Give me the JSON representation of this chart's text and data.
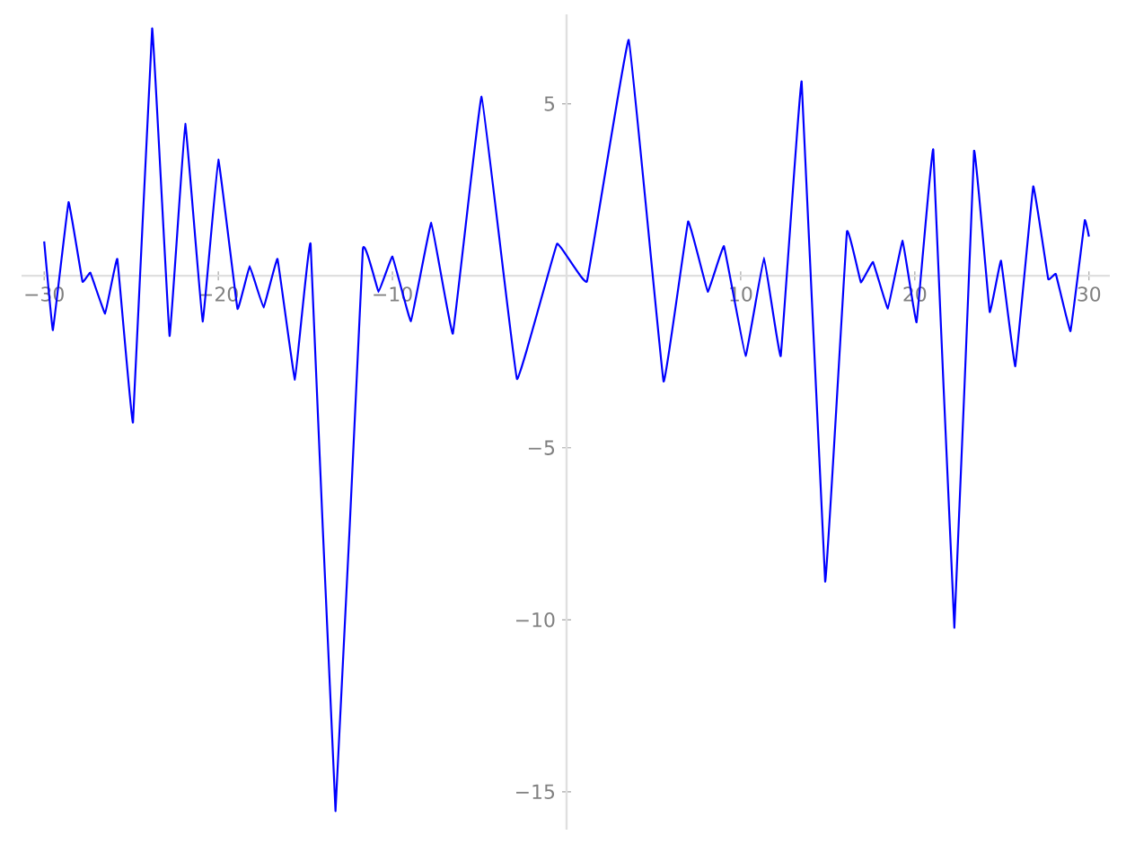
{
  "chart_data": {
    "type": "line",
    "xlim": [
      -31.3,
      31.2
    ],
    "ylim": [
      -16.1,
      7.6
    ],
    "xticks": [
      {
        "value": -30,
        "label": "−30"
      },
      {
        "value": -20,
        "label": "−20"
      },
      {
        "value": -10,
        "label": "−10"
      },
      10,
      20,
      30
    ],
    "yticks": [
      {
        "value": -15,
        "label": "−15"
      },
      {
        "value": -10,
        "label": "−10"
      },
      {
        "value": -5,
        "label": "−5"
      },
      5
    ],
    "series": [
      {
        "color": "#0000ff",
        "x": [
          -30,
          -29.5,
          -28.6,
          -27.8,
          -27.35,
          -26.5,
          -25.8,
          -24.9,
          -23.8,
          -22.8,
          -21.9,
          -20.9,
          -20.0,
          -18.9,
          -18.2,
          -17.4,
          -16.6,
          -15.6,
          -14.7,
          -13.27,
          -11.7,
          -10.8,
          -10.0,
          -8.94,
          -7.77,
          -6.53,
          -4.88,
          -2.85,
          -0.55,
          1.17,
          3.57,
          5.57,
          6.98,
          8.11,
          9.04,
          10.28,
          11.34,
          12.3,
          13.5,
          14.85,
          16.1,
          16.9,
          17.6,
          18.45,
          19.3,
          20.1,
          21.06,
          22.27,
          23.4,
          24.3,
          24.95,
          25.77,
          26.8,
          27.66,
          28.1,
          28.94,
          29.76,
          30.0
        ],
        "values": [
          1.0,
          -1.58,
          2.14,
          -0.17,
          0.09,
          -1.1,
          0.49,
          -4.26,
          7.19,
          -1.75,
          4.42,
          -1.33,
          3.38,
          -0.96,
          0.28,
          -0.93,
          0.49,
          -3.02,
          0.93,
          -15.56,
          0.77,
          -0.47,
          0.56,
          -1.32,
          1.54,
          -1.68,
          5.21,
          -3.0,
          0.93,
          -0.16,
          6.86,
          -3.07,
          1.58,
          -0.46,
          0.86,
          -2.33,
          0.53,
          -2.33,
          5.65,
          -8.89,
          1.28,
          -0.19,
          0.4,
          -0.95,
          1.02,
          -1.35,
          3.67,
          -10.23,
          3.63,
          -1.05,
          0.44,
          -2.63,
          2.6,
          -0.09,
          0.05,
          -1.61,
          1.61,
          1.14
        ]
      }
    ]
  }
}
